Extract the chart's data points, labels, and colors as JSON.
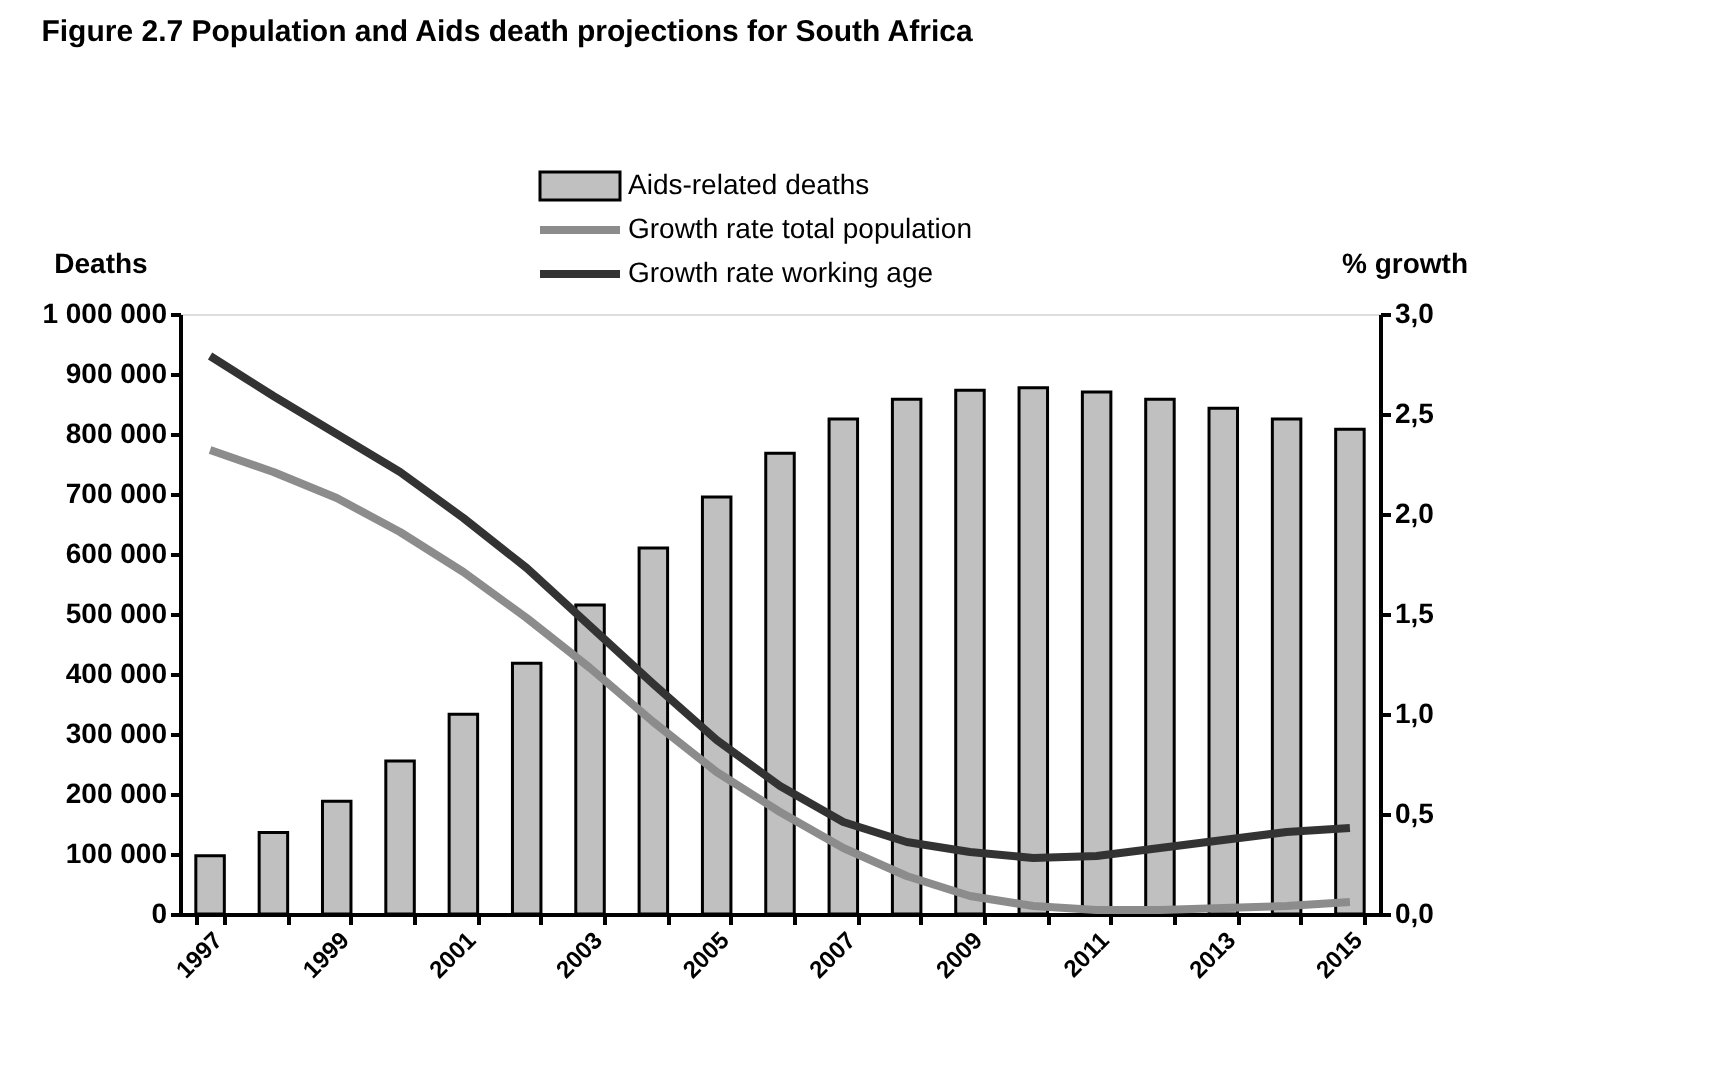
{
  "chart_data": {
    "type": "bar",
    "title": "Figure 2.7 Population and Aids death projections for South Africa",
    "ylabel": "Deaths",
    "y2label": "% growth",
    "categories": [
      "1997",
      null,
      "1999",
      null,
      "2001",
      null,
      "2003",
      null,
      "2005",
      null,
      "2007",
      null,
      "2009",
      null,
      "2011",
      null,
      "2013",
      null,
      "2015"
    ],
    "series": [
      {
        "name": "Aids-related deaths",
        "color": "#c0c0c0",
        "values": [
          97000,
          136000,
          188000,
          255000,
          333000,
          418000,
          515000,
          610000,
          695000,
          768000,
          825000,
          858000,
          873000,
          877000,
          870000,
          858000,
          843000,
          825000,
          808000
        ]
      },
      {
        "name": "Growth rate total population",
        "type": "line",
        "axis": "y2",
        "color": "#8c8c8c",
        "values": [
          2.32,
          2.21,
          2.08,
          1.91,
          1.71,
          1.48,
          1.23,
          0.96,
          0.71,
          0.51,
          0.33,
          0.19,
          0.09,
          0.04,
          0.02,
          0.02,
          0.03,
          0.04,
          0.06
        ]
      },
      {
        "name": "Growth rate working age",
        "type": "line",
        "axis": "y2",
        "color": "#333333",
        "values": [
          2.79,
          2.59,
          2.4,
          2.21,
          1.98,
          1.73,
          1.44,
          1.15,
          0.87,
          0.64,
          0.46,
          0.36,
          0.31,
          0.28,
          0.29,
          0.33,
          0.37,
          0.41,
          0.43
        ]
      }
    ],
    "ylim": [
      0,
      1000000
    ],
    "yticks": [
      0,
      {
        "value": 100000,
        "label": "100 000"
      },
      {
        "value": 200000,
        "label": "200 000"
      },
      {
        "value": 300000,
        "label": "300 000"
      },
      {
        "value": 400000,
        "label": "400 000"
      },
      {
        "value": 500000,
        "label": "500 000"
      },
      {
        "value": 600000,
        "label": "600 000"
      },
      {
        "value": 700000,
        "label": "700 000"
      },
      {
        "value": 800000,
        "label": "800 000"
      },
      {
        "value": 900000,
        "label": "900 000"
      },
      {
        "value": 1000000,
        "label": "1 000 000"
      }
    ],
    "y2lim": [
      0,
      3
    ],
    "y2ticks": [
      {
        "value": 0,
        "label": "0,0"
      },
      {
        "value": 0.5,
        "label": "0,5"
      },
      {
        "value": 1,
        "label": "1,0"
      },
      {
        "value": 1.5,
        "label": "1,5"
      },
      {
        "value": 2,
        "label": "2,0"
      },
      {
        "value": 2.5,
        "label": "2,5"
      },
      {
        "value": 3,
        "label": "3,0"
      }
    ],
    "grid": false,
    "legend": "top"
  }
}
